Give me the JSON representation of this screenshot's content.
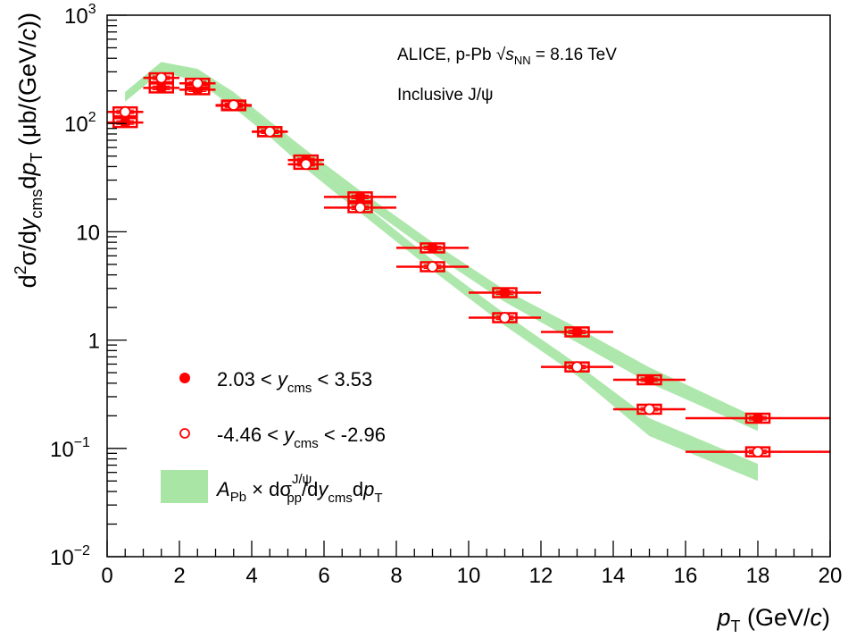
{
  "chart_data": {
    "type": "scatter",
    "x_scale": "linear",
    "y_scale": "log",
    "xlim": [
      0,
      20
    ],
    "ylim": [
      0.01,
      1000
    ],
    "grid": false,
    "legend_placement": "bottom-left",
    "x_ticks": [
      "0",
      "2",
      "4",
      "6",
      "8",
      "10",
      "12",
      "14",
      "16",
      "18",
      "20"
    ],
    "y_ticks": [
      {
        "base": "10",
        "exp": "−2"
      },
      {
        "base": "10",
        "exp": "−1"
      },
      {
        "base": "1",
        "exp": ""
      },
      {
        "base": "10",
        "exp": ""
      },
      {
        "base": "10",
        "exp": "2"
      },
      {
        "base": "10",
        "exp": "3"
      }
    ],
    "xlabel": {
      "p": "p",
      "sub": "T",
      "unit": " (GeV/",
      "c": "c",
      "close": ")"
    },
    "ylabel": {
      "d": "d",
      "sup2": "2",
      "sigma": "σ/d",
      "y": "y",
      "cms": "cms",
      "dp": "d",
      "p": "p",
      "T": "T",
      "unit": " (μb/(GeV/",
      "c": "c",
      "close": "))"
    },
    "annotations": {
      "line1_a": "ALICE, p-Pb ",
      "line1_s": "s",
      "line1_nn": "NN",
      "line1_b": " = 8.16 TeV",
      "line2": "Inclusive J/ψ"
    },
    "colors": {
      "data": "#ff0000",
      "band": "#a9e6a6"
    },
    "series": [
      {
        "name": "2.03 < y_cms < 3.53",
        "legend": {
          "a": "2.03 < ",
          "y": "y",
          "sub": "cms",
          "b": " < 3.53"
        },
        "marker": "filled-circle",
        "x": [
          0.5,
          1.5,
          2.5,
          3.5,
          4.5,
          5.5,
          7,
          9,
          11,
          13,
          15,
          18
        ],
        "xerr": [
          0.5,
          0.5,
          0.5,
          0.5,
          0.5,
          0.5,
          1,
          1,
          1,
          1,
          1,
          2
        ],
        "y": [
          102,
          213,
          205,
          146,
          84,
          46,
          21,
          7.1,
          2.74,
          1.19,
          0.43,
          0.19
        ]
      },
      {
        "name": "-4.46 < y_cms < -2.96",
        "legend": {
          "a": "-4.46 < ",
          "y": "y",
          "sub": "cms",
          "b": " < -2.96"
        },
        "marker": "open-circle",
        "x": [
          0.5,
          1.5,
          2.5,
          3.5,
          4.5,
          5.5,
          7,
          9,
          11,
          13,
          15,
          18
        ],
        "xerr": [
          0.5,
          0.5,
          0.5,
          0.5,
          0.5,
          0.5,
          1,
          1,
          1,
          1,
          1,
          2
        ],
        "y": [
          128,
          264,
          235,
          148,
          84,
          42,
          16.7,
          4.76,
          1.61,
          0.565,
          0.23,
          0.093
        ]
      }
    ],
    "bands": {
      "legend": {
        "A": "A",
        "Pb": "Pb",
        "times": " × d",
        "sigma": "σ",
        "sup": "J/ψ",
        "sub": "pp",
        "mid": "/d",
        "y": "y",
        "cms": "cms",
        "d": "d",
        "p": "p",
        "T": "T"
      },
      "x": [
        0.5,
        1.5,
        2.5,
        3.5,
        4.5,
        5.5,
        7,
        9,
        11,
        13,
        15,
        18
      ],
      "forward": {
        "low": [
          160,
          300,
          255,
          155,
          85,
          45,
          19,
          6.3,
          2.25,
          0.95,
          0.4,
          0.145
        ],
        "high": [
          195,
          370,
          320,
          195,
          105,
          57,
          24,
          8.0,
          2.9,
          1.3,
          0.56,
          0.19
        ]
      },
      "backward": {
        "low": [
          160,
          300,
          245,
          140,
          75,
          38,
          15,
          4.4,
          1.36,
          0.47,
          0.13,
          0.05
        ],
        "high": [
          195,
          370,
          300,
          175,
          95,
          48,
          19,
          5.5,
          1.75,
          0.6,
          0.19,
          0.072
        ]
      }
    }
  }
}
